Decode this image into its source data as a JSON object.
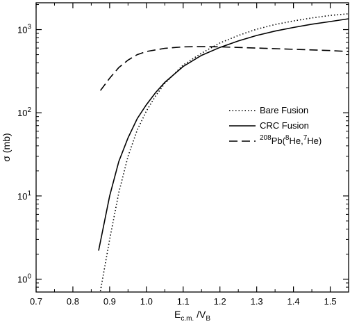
{
  "chart_data": {
    "type": "line",
    "x_scale": "linear",
    "y_scale": "log",
    "xlim": [
      0.7,
      1.55
    ],
    "ylim": [
      0.7,
      2100
    ],
    "x_ticks": [
      0.7,
      0.8,
      0.9,
      1.0,
      1.1,
      1.2,
      1.3,
      1.4,
      1.5
    ],
    "x_tick_labels": [
      "0.7",
      "0.8",
      "0.9",
      "1.0",
      "1.1",
      "1.2",
      "1.3",
      "1.4",
      "1.5"
    ],
    "y_ticks": [
      1,
      10,
      100,
      1000
    ],
    "y_tick_labels": [
      {
        "base": "10",
        "exp": "0"
      },
      {
        "base": "10",
        "exp": "1"
      },
      {
        "base": "10",
        "exp": "2"
      },
      {
        "base": "10",
        "exp": "3"
      }
    ],
    "grid": false,
    "legend_position": "center-right",
    "xlabel": {
      "main": "E",
      "sub1": "c.m.",
      "mid": " /V",
      "sub2": "B"
    },
    "ylabel": "σ (mb)",
    "series": [
      {
        "name": "Bare Fusion",
        "style": "dotted",
        "x": [
          0.875,
          0.9,
          0.925,
          0.95,
          0.975,
          1.0,
          1.025,
          1.05,
          1.1,
          1.15,
          1.2,
          1.25,
          1.3,
          1.35,
          1.4,
          1.45,
          1.5,
          1.55
        ],
        "y": [
          0.72,
          3.0,
          11.0,
          30.0,
          62.0,
          105.0,
          160.0,
          225.0,
          375.0,
          520.0,
          690.0,
          850.0,
          1010.0,
          1150.0,
          1270.0,
          1380.0,
          1480.0,
          1550.0
        ]
      },
      {
        "name": "CRC Fusion",
        "style": "solid",
        "x": [
          0.87,
          0.9,
          0.925,
          0.95,
          0.975,
          1.0,
          1.025,
          1.05,
          1.1,
          1.15,
          1.2,
          1.25,
          1.3,
          1.35,
          1.4,
          1.45,
          1.5,
          1.55
        ],
        "y": [
          2.2,
          10.0,
          26.0,
          50.0,
          85.0,
          125.0,
          175.0,
          232.0,
          360.0,
          490.0,
          610.0,
          730.0,
          850.0,
          960.0,
          1060.0,
          1160.0,
          1250.0,
          1350.0
        ]
      },
      {
        "name": "208Pb(8He,7He)",
        "legend_parts": [
          {
            "sup": "208"
          },
          {
            "text": "Pb("
          },
          {
            "sup": "8"
          },
          {
            "text": "He,"
          },
          {
            "sup": "7"
          },
          {
            "text": "He)"
          }
        ],
        "style": "dashed",
        "x": [
          0.875,
          0.9,
          0.925,
          0.95,
          0.975,
          1.0,
          1.05,
          1.1,
          1.15,
          1.2,
          1.3,
          1.4,
          1.5,
          1.55
        ],
        "y": [
          185.0,
          260.0,
          350.0,
          430.0,
          500.0,
          545.0,
          595.0,
          620.0,
          625.0,
          620.0,
          600.0,
          580.0,
          560.0,
          545.0
        ]
      }
    ]
  }
}
